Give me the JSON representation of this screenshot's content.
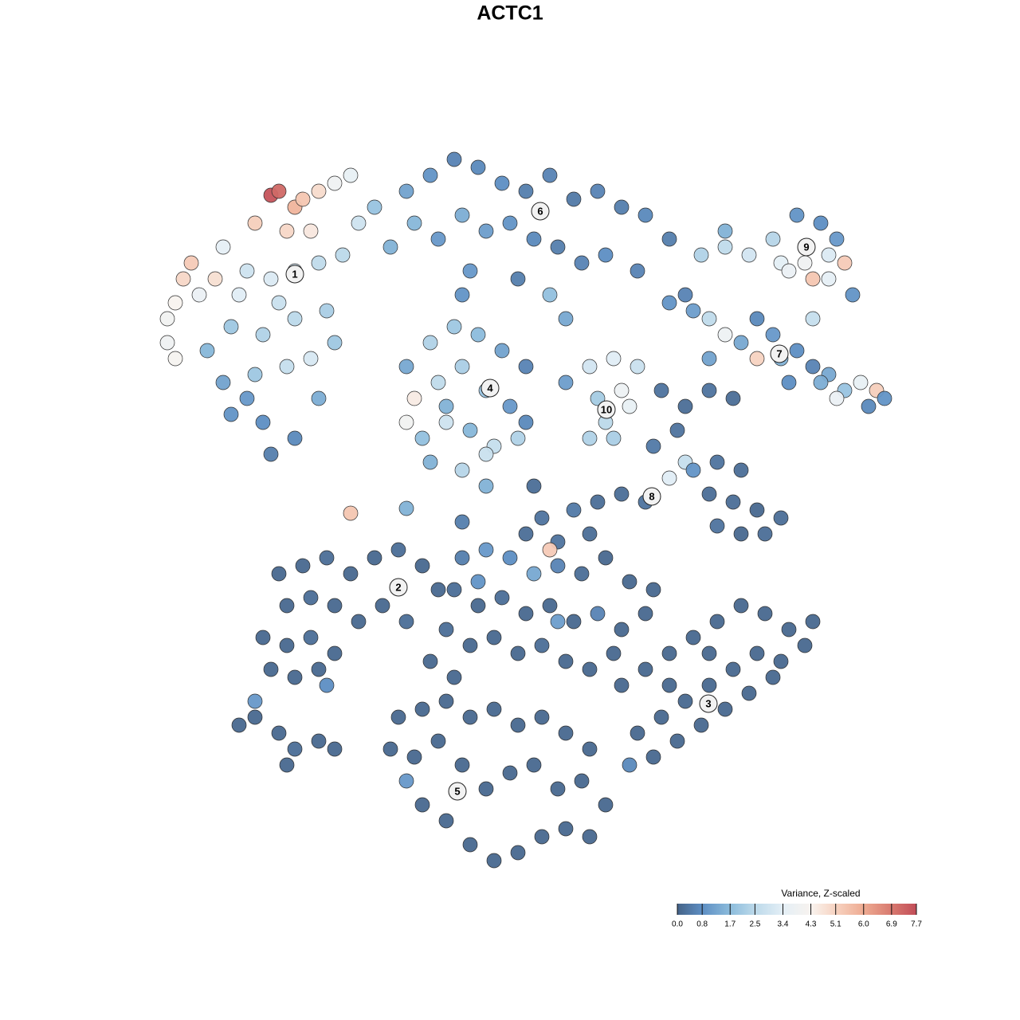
{
  "chart_data": {
    "type": "scatter",
    "title": "ACTC1",
    "xlim": [
      -45,
      50
    ],
    "ylim": [
      -46,
      46
    ],
    "x": [
      -30,
      -29,
      -27,
      -26,
      -24,
      -22,
      -20,
      -32,
      -28,
      -25,
      -40,
      -41,
      -36,
      -42,
      -43,
      -43,
      -42,
      -39,
      -37,
      -33,
      -30,
      -27,
      -24,
      -21,
      -35,
      -31,
      -27,
      -23,
      -36,
      -32,
      -28,
      -25,
      -22,
      -35,
      -31,
      -27,
      -30,
      -33,
      -24,
      -38,
      -29,
      -34,
      -19,
      -17,
      -15,
      -13,
      -10,
      -7,
      -4,
      -1,
      2,
      5,
      8,
      11,
      14,
      17,
      20,
      -12,
      -9,
      -6,
      -3,
      0,
      3,
      6,
      9,
      12,
      16,
      -5,
      1,
      5,
      7,
      -6,
      22,
      -13,
      -10,
      -7,
      -4,
      -1,
      2,
      -12,
      -13,
      -9,
      -6,
      -3,
      0,
      2,
      -11,
      -8,
      -5,
      -2,
      1,
      -10,
      -6,
      -3,
      -8,
      10,
      13,
      16,
      14,
      11,
      15,
      12,
      10,
      13,
      7,
      24,
      27,
      30,
      33,
      36,
      39,
      41,
      34,
      37,
      40,
      42,
      38,
      35,
      27,
      43,
      40,
      20,
      23,
      25,
      27,
      29,
      31,
      33,
      31,
      34,
      36,
      38,
      40,
      42,
      44,
      46,
      47,
      45,
      41,
      39,
      25,
      35,
      38,
      19,
      22,
      25,
      28,
      21,
      18,
      22,
      20,
      23,
      26,
      29,
      25,
      28,
      31,
      34,
      32,
      29,
      26,
      14,
      17,
      11,
      8,
      4,
      2,
      6,
      10,
      5,
      3,
      -29,
      -26,
      -23,
      -20,
      -17,
      -14,
      -11,
      -9,
      -28,
      -25,
      -22,
      -31,
      -28,
      -25,
      -22,
      -30,
      -27,
      -24,
      -19,
      -16,
      -13,
      -23,
      -6,
      -3,
      0,
      3,
      6,
      9,
      12,
      15,
      18,
      -7,
      -4,
      -1,
      2,
      5,
      8,
      11,
      14,
      17,
      -8,
      -5,
      -2,
      1,
      4,
      7,
      10,
      13,
      -10,
      -7,
      6,
      -4,
      14,
      17,
      20,
      23,
      26,
      29,
      32,
      35,
      37,
      34,
      31,
      28,
      25,
      22,
      19,
      16,
      15,
      18,
      21,
      24,
      27,
      30,
      33,
      38,
      25,
      20,
      -14,
      -11,
      -8,
      -5,
      -2,
      1,
      4,
      7,
      10,
      -15,
      -12,
      -9,
      -6,
      -3,
      0,
      3,
      6,
      9,
      12,
      -11,
      -8,
      -5,
      -2,
      1,
      4,
      7,
      10,
      -13,
      -34,
      -32,
      -29,
      -27,
      -24,
      -22,
      -28,
      -32,
      -20,
      -13,
      -3,
      -6
    ],
    "y": [
      39.5,
      40,
      38,
      39,
      40,
      41,
      42,
      36,
      35,
      35,
      31,
      29,
      33,
      26,
      24,
      21,
      19,
      27,
      29,
      30,
      29,
      30,
      31,
      32,
      23,
      22,
      24,
      25,
      16,
      17,
      18,
      19,
      21,
      12,
      11,
      9,
      7,
      14,
      14,
      20,
      26,
      27,
      36,
      38,
      33,
      40,
      42,
      44,
      43,
      41,
      40,
      42,
      39,
      40,
      38,
      37,
      34,
      36,
      34,
      37,
      35,
      36,
      34,
      33,
      31,
      32,
      30,
      30,
      29,
      27,
      24,
      27,
      27,
      18,
      21,
      23,
      22,
      20,
      18,
      14,
      11,
      16,
      18,
      15,
      13,
      11,
      9,
      11,
      10,
      8,
      9,
      6,
      5,
      7,
      13,
      18,
      19,
      18,
      15,
      14,
      13,
      11,
      9,
      9,
      16,
      32,
      33,
      32,
      34,
      37,
      36,
      34,
      31,
      31,
      32,
      31,
      29,
      30,
      35,
      27,
      29,
      26,
      25,
      24,
      22,
      21,
      24,
      22,
      19,
      19,
      20,
      18,
      17,
      15,
      16,
      15,
      14,
      13,
      14,
      16,
      19,
      16,
      24,
      15,
      13,
      15,
      14,
      10,
      8,
      6,
      4,
      5,
      6,
      5,
      2,
      1,
      0,
      -1,
      -3,
      -3,
      -2,
      2,
      1,
      1,
      0,
      -1,
      -3,
      -4,
      -3,
      -5,
      3,
      -8,
      -7,
      -6,
      -8,
      -6,
      -5,
      -7,
      -10,
      -12,
      -11,
      -12,
      -16,
      -17,
      -16,
      -18,
      -20,
      -21,
      -20,
      -14,
      -12,
      -14,
      -22,
      -6,
      -5,
      -6,
      -8,
      -7,
      -8,
      -6,
      -9,
      -10,
      -10,
      -12,
      -11,
      -13,
      -12,
      -14,
      -13,
      -15,
      -13,
      -15,
      -17,
      -16,
      -18,
      -17,
      -19,
      -20,
      -18,
      -19,
      -21,
      -14,
      -9,
      -22,
      -20,
      -18,
      -16,
      -14,
      -12,
      -13,
      -15,
      -17,
      -19,
      -18,
      -20,
      -22,
      -24,
      -26,
      -28,
      -32,
      -31,
      -29,
      -27,
      -25,
      -23,
      -21,
      -14,
      -18,
      -22,
      -26,
      -25,
      -24,
      -26,
      -25,
      -27,
      -26,
      -28,
      -30,
      -30,
      -31,
      -29,
      -32,
      -35,
      -33,
      -32,
      -35,
      -34,
      -37,
      -37,
      -39,
      -42,
      -44,
      -43,
      -41,
      -40,
      -41,
      -34,
      -27,
      -26,
      -28,
      -30,
      -29,
      -30,
      -32,
      -24,
      -0.4,
      0.2,
      3,
      -1.5
    ],
    "values": [
      7.6,
      7.2,
      5.8,
      5.4,
      4.9,
      3.9,
      3.6,
      5.2,
      5.0,
      4.6,
      5.3,
      5.0,
      3.5,
      4.3,
      4.0,
      3.9,
      4.2,
      3.7,
      4.8,
      2.9,
      3.2,
      3.0,
      2.6,
      2.5,
      2.0,
      2.3,
      2.5,
      2.2,
      1.2,
      2.0,
      2.7,
      3.1,
      2.0,
      0.9,
      0.8,
      0.7,
      0.5,
      1.0,
      1.4,
      1.6,
      2.8,
      3.3,
      2.9,
      1.9,
      1.5,
      1.2,
      0.9,
      0.6,
      0.7,
      0.8,
      0.5,
      0.6,
      0.4,
      0.6,
      0.5,
      0.7,
      0.5,
      1.6,
      1.0,
      1.4,
      1.1,
      0.9,
      0.7,
      0.5,
      0.6,
      0.8,
      0.6,
      1.0,
      0.5,
      1.8,
      1.3,
      0.9,
      0.6,
      1.3,
      2.3,
      2.0,
      1.7,
      1.2,
      0.6,
      4.5,
      4.0,
      2.6,
      2.2,
      1.9,
      1.0,
      0.7,
      1.8,
      2.9,
      1.6,
      2.7,
      2.3,
      1.5,
      2.4,
      2.8,
      1.5,
      3.0,
      3.3,
      2.8,
      3.8,
      2.1,
      3.6,
      2.5,
      2.3,
      2.2,
      1.1,
      2.3,
      2.6,
      3.0,
      2.4,
      0.9,
      0.8,
      1.0,
      3.4,
      3.9,
      3.2,
      5.3,
      5.4,
      3.7,
      1.5,
      0.9,
      3.5,
      0.9,
      1.1,
      2.6,
      3.8,
      1.3,
      0.7,
      1.0,
      5.1,
      1.5,
      0.8,
      0.6,
      1.3,
      1.9,
      3.6,
      5.2,
      0.9,
      0.7,
      3.7,
      1.4,
      1.2,
      0.8,
      2.7,
      0.3,
      0.2,
      0.3,
      0.2,
      0.3,
      0.4,
      2.7,
      3.3,
      0.9,
      0.3,
      0.2,
      0.2,
      0.2,
      0.1,
      0.2,
      0.2,
      0.1,
      0.3,
      0.2,
      0.3,
      0.2,
      0.4,
      0.3,
      0.2,
      0.3,
      0.2,
      5.3,
      0.2,
      0.1,
      0.1,
      0.2,
      0.1,
      0.1,
      0.2,
      0.1,
      0.1,
      0.1,
      0.2,
      0.1,
      0.1,
      0.1,
      0.2,
      0.1,
      0.1,
      0.1,
      0.1,
      0.1,
      0.1,
      0.2,
      0.8,
      0.5,
      1.0,
      0.8,
      1.3,
      0.6,
      0.2,
      0.1,
      0.1,
      0.1,
      0.2,
      0.1,
      0.2,
      0.1,
      0.1,
      0.1,
      0.6,
      0.1,
      0.1,
      0.2,
      0.1,
      0.1,
      0.1,
      0.2,
      0.1,
      0.1,
      0.1,
      0.1,
      0.1,
      1.1,
      0.9,
      0.1,
      0.1,
      0.1,
      0.1,
      0.1,
      0.1,
      0.1,
      0.1,
      0.1,
      0.1,
      0.1,
      0.1,
      0.1,
      0.1,
      0.1,
      0.1,
      0.7,
      0.1,
      0.1,
      0.1,
      0.1,
      0.1,
      0.1,
      0.1,
      0.1,
      0.1,
      0.1,
      0.1,
      0.1,
      0.1,
      0.1,
      0.1,
      0.1,
      0.1,
      0.1,
      0.1,
      0.1,
      0.1,
      0.1,
      0.1,
      0.1,
      0.1,
      0.1,
      0.1,
      0.1,
      0.1,
      0.1,
      0.1,
      0.1,
      0.1,
      0.1,
      0.1,
      0.1,
      1.0,
      0.1,
      0.1,
      0.1,
      0.2,
      0.1,
      0.1,
      0.1,
      1.0,
      5.4,
      1.5,
      1.5,
      0.5
    ],
    "cluster_labels": [
      {
        "label": "1",
        "x": -27,
        "y": 29.6
      },
      {
        "label": "2",
        "x": -14,
        "y": -9.7
      },
      {
        "label": "3",
        "x": 24.9,
        "y": -24.3
      },
      {
        "label": "4",
        "x": -2.5,
        "y": 15.3
      },
      {
        "label": "5",
        "x": -6.6,
        "y": -35.3
      },
      {
        "label": "6",
        "x": 3.8,
        "y": 37.5
      },
      {
        "label": "7",
        "x": 33.8,
        "y": 19.6
      },
      {
        "label": "8",
        "x": 17.8,
        "y": 1.7
      },
      {
        "label": "9",
        "x": 37.2,
        "y": 33
      },
      {
        "label": "10",
        "x": 12.1,
        "y": 12.6
      }
    ],
    "colorbar": {
      "title": "Variance, Z-scaled",
      "lim": [
        0,
        7.7
      ],
      "ticks": [
        {
          "value": 0,
          "label": "0.0"
        },
        0.8,
        1.7,
        2.5,
        3.4,
        4.3,
        5.1,
        {
          "value": 6,
          "label": "6.0"
        },
        6.9,
        7.7
      ],
      "colors": [
        "#456388",
        "#5d8ec3",
        "#8cbcdc",
        "#bcd9ea",
        "#e4eff6",
        "#f8f3ef",
        "#f7d3c1",
        "#eeab92",
        "#d8796f",
        "#c24d58"
      ]
    }
  }
}
